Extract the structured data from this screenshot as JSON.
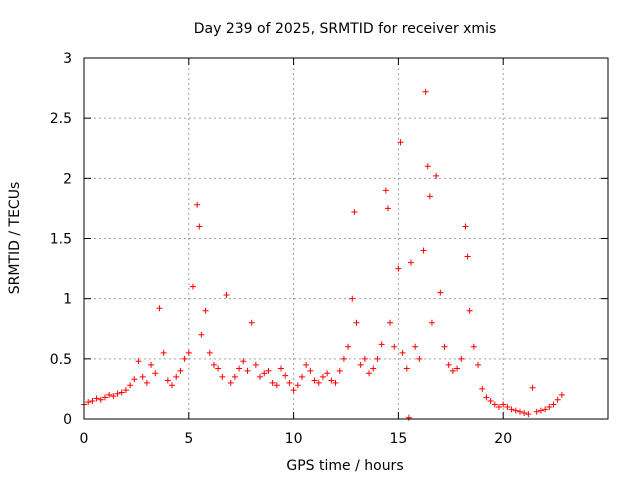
{
  "chart_data": {
    "type": "scatter",
    "title": "Day 239 of 2025, SRMTID for receiver xmis",
    "xlabel": "GPS time / hours",
    "ylabel": "SRMTID / TECUs",
    "xlim": [
      0,
      25
    ],
    "ylim": [
      0,
      3
    ],
    "xticks": [
      0,
      5,
      10,
      15,
      20
    ],
    "xtick_labels": [
      "0",
      "5",
      "10",
      "15",
      "20"
    ],
    "yticks": [
      0,
      0.5,
      1,
      1.5,
      2,
      2.5,
      3
    ],
    "ytick_labels": [
      "0",
      "0.5",
      "1",
      "1.5",
      "2",
      "2.5",
      "3"
    ],
    "grid": true,
    "marker": "+",
    "color": "#ff0000",
    "series": [
      {
        "name": "SRMTID",
        "x": [
          0.0,
          0.2,
          0.4,
          0.6,
          0.8,
          1.0,
          1.2,
          1.4,
          1.6,
          1.8,
          2.0,
          2.2,
          2.4,
          2.6,
          2.8,
          3.0,
          3.2,
          3.4,
          3.6,
          3.8,
          4.0,
          4.2,
          4.4,
          4.6,
          4.8,
          5.0,
          5.2,
          5.4,
          5.5,
          5.6,
          5.8,
          6.0,
          6.2,
          6.4,
          6.6,
          6.8,
          7.0,
          7.2,
          7.4,
          7.6,
          7.8,
          8.0,
          8.2,
          8.4,
          8.6,
          8.8,
          9.0,
          9.2,
          9.4,
          9.6,
          9.8,
          10.0,
          10.2,
          10.4,
          10.6,
          10.8,
          11.0,
          11.2,
          11.4,
          11.6,
          11.8,
          12.0,
          12.2,
          12.4,
          12.6,
          12.8,
          12.9,
          13.0,
          13.2,
          13.4,
          13.6,
          13.8,
          14.0,
          14.2,
          14.4,
          14.5,
          14.6,
          14.8,
          15.0,
          15.1,
          15.2,
          15.4,
          15.5,
          15.6,
          15.8,
          16.0,
          16.2,
          16.3,
          16.4,
          16.5,
          16.6,
          16.8,
          17.0,
          17.2,
          17.4,
          17.6,
          17.8,
          18.0,
          18.2,
          18.3,
          18.4,
          18.6,
          18.8,
          19.0,
          19.2,
          19.4,
          19.6,
          19.8,
          20.0,
          20.2,
          20.4,
          20.6,
          20.8,
          21.0,
          21.2,
          21.4,
          21.6,
          21.8,
          22.0,
          22.2,
          22.4,
          22.6,
          22.8
        ],
        "y": [
          0.12,
          0.14,
          0.15,
          0.17,
          0.16,
          0.18,
          0.2,
          0.19,
          0.21,
          0.22,
          0.24,
          0.28,
          0.33,
          0.48,
          0.35,
          0.3,
          0.45,
          0.38,
          0.92,
          0.55,
          0.32,
          0.28,
          0.35,
          0.4,
          0.5,
          0.55,
          1.1,
          1.78,
          1.6,
          0.7,
          0.9,
          0.55,
          0.45,
          0.42,
          0.35,
          1.03,
          0.3,
          0.35,
          0.42,
          0.48,
          0.4,
          0.8,
          0.45,
          0.35,
          0.38,
          0.4,
          0.3,
          0.28,
          0.42,
          0.36,
          0.3,
          0.24,
          0.28,
          0.35,
          0.45,
          0.4,
          0.32,
          0.3,
          0.35,
          0.38,
          0.32,
          0.3,
          0.4,
          0.5,
          0.6,
          1.0,
          1.72,
          0.8,
          0.45,
          0.5,
          0.38,
          0.42,
          0.5,
          0.62,
          1.9,
          1.75,
          0.8,
          0.6,
          1.25,
          2.3,
          0.55,
          0.42,
          0.01,
          1.3,
          0.6,
          0.5,
          1.4,
          2.72,
          2.1,
          1.85,
          0.8,
          2.02,
          1.05,
          0.6,
          0.45,
          0.4,
          0.42,
          0.5,
          1.6,
          1.35,
          0.9,
          0.6,
          0.45,
          0.25,
          0.18,
          0.15,
          0.12,
          0.1,
          0.12,
          0.1,
          0.08,
          0.07,
          0.06,
          0.05,
          0.04,
          0.26,
          0.06,
          0.07,
          0.08,
          0.1,
          0.12,
          0.16,
          0.2
        ]
      }
    ]
  }
}
